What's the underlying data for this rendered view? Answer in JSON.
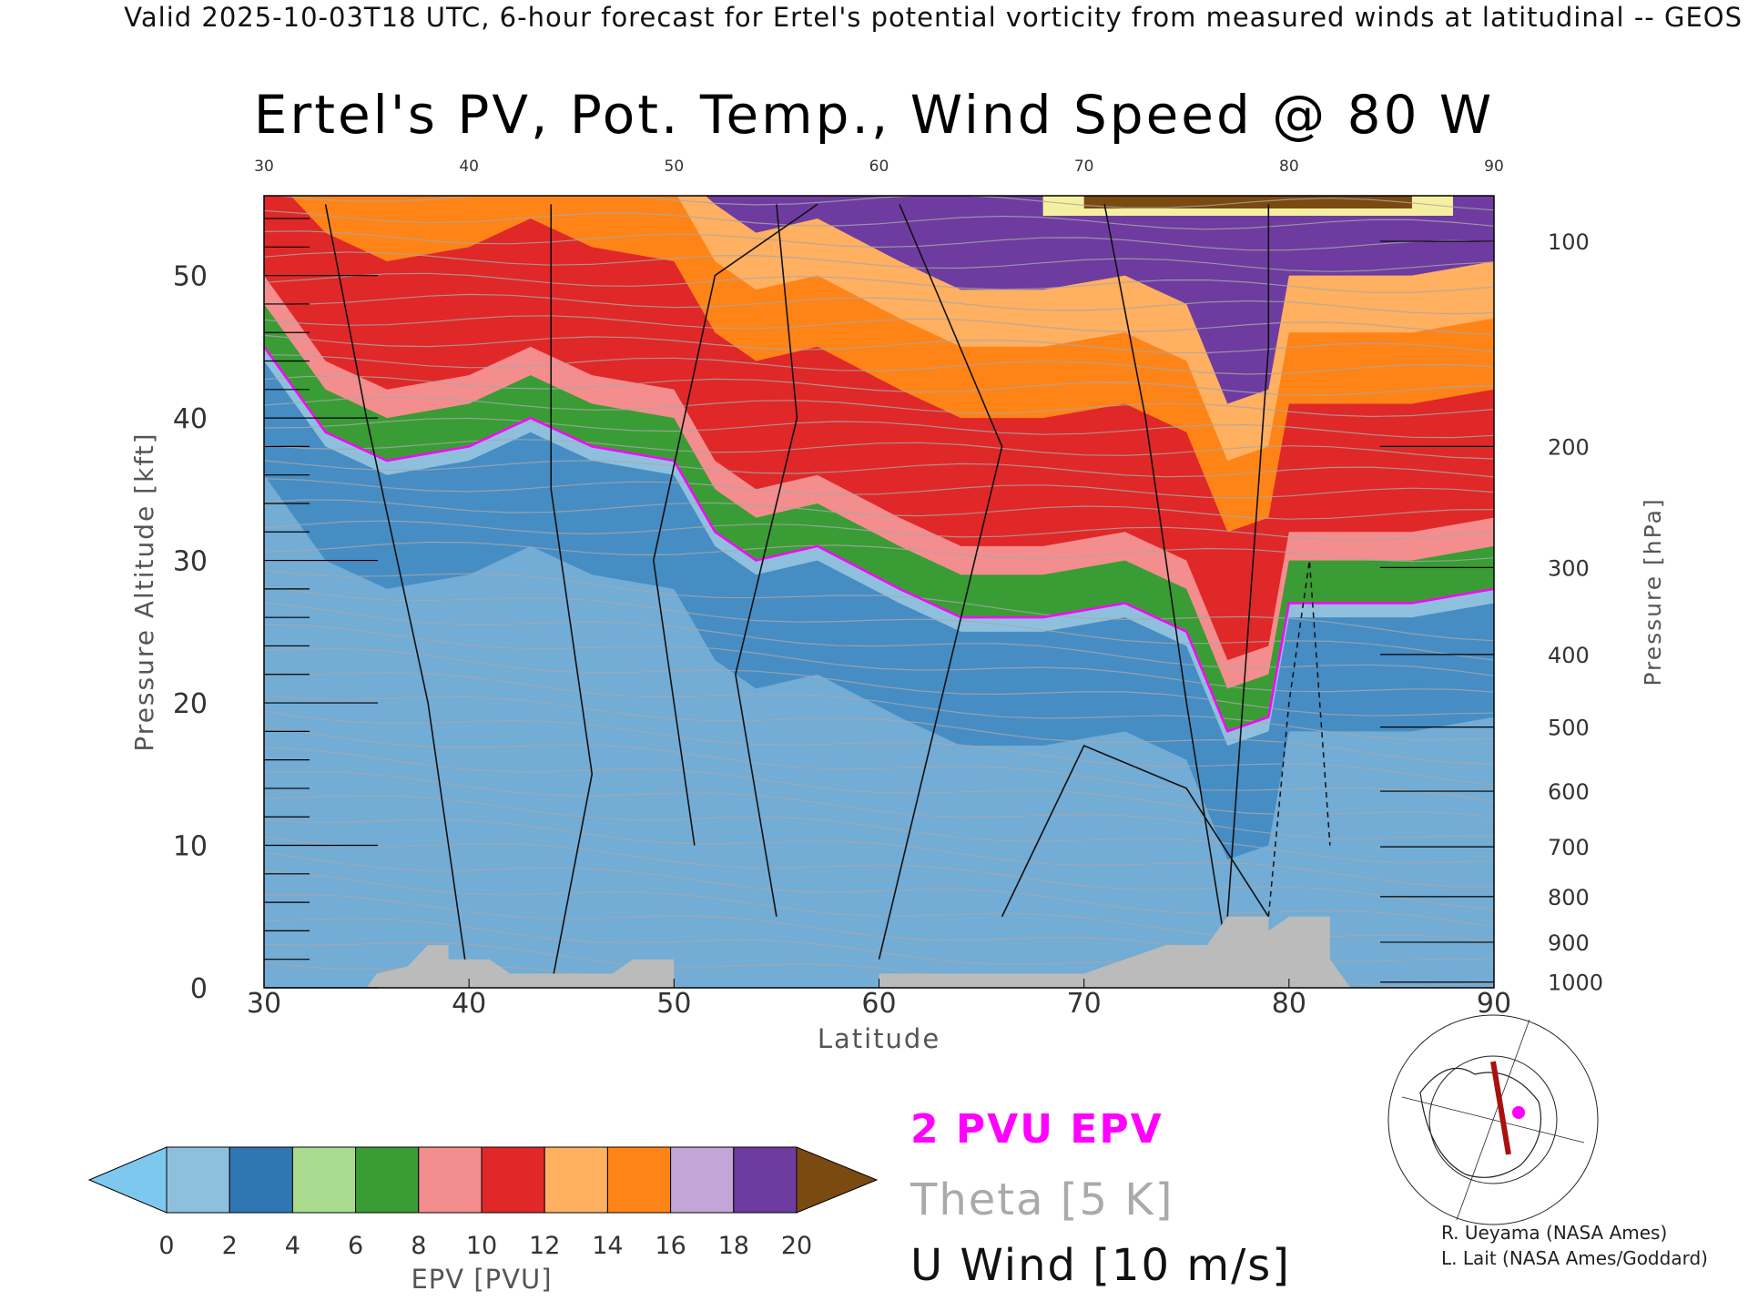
{
  "header": "Valid 2025-10-03T18 UTC, 6-hour forecast for Ertel's potential vorticity from measured winds at latitudinal -- GEOS",
  "chart_data": {
    "type": "heatmap",
    "title": "Ertel's PV, Pot. Temp., Wind Speed @ 80 W",
    "xlabel": "Latitude",
    "ylabel": "Pressure Altitude [kft]",
    "ylabel_right": "Pressure [hPa]",
    "xlim": [
      30,
      90
    ],
    "ylim": [
      0,
      55.6
    ],
    "x_ticks": [
      "30",
      "40",
      "50",
      "60",
      "70",
      "80",
      "90"
    ],
    "x_ticks_top": [
      "30",
      "40",
      "50",
      "60",
      "70",
      "80",
      "90"
    ],
    "y_ticks": [
      "0",
      "10",
      "20",
      "30",
      "40",
      "50"
    ],
    "pressure_ticks": [
      {
        "label": "100",
        "kft": 52.4
      },
      {
        "label": "200",
        "kft": 38.0
      },
      {
        "label": "300",
        "kft": 29.5
      },
      {
        "label": "400",
        "kft": 23.4
      },
      {
        "label": "500",
        "kft": 18.3
      },
      {
        "label": "600",
        "kft": 13.8
      },
      {
        "label": "700",
        "kft": 9.9
      },
      {
        "label": "800",
        "kft": 6.4
      },
      {
        "label": "900",
        "kft": 3.2
      },
      {
        "label": "1000",
        "kft": 0.4
      }
    ],
    "tropopause_2pvu_kft": [
      {
        "lat": 30,
        "kft": 45
      },
      {
        "lat": 33,
        "kft": 39
      },
      {
        "lat": 36,
        "kft": 37
      },
      {
        "lat": 40,
        "kft": 38
      },
      {
        "lat": 43,
        "kft": 40
      },
      {
        "lat": 46,
        "kft": 38
      },
      {
        "lat": 50,
        "kft": 37
      },
      {
        "lat": 52,
        "kft": 32
      },
      {
        "lat": 54,
        "kft": 30
      },
      {
        "lat": 57,
        "kft": 31
      },
      {
        "lat": 61,
        "kft": 28
      },
      {
        "lat": 64,
        "kft": 26
      },
      {
        "lat": 68,
        "kft": 26
      },
      {
        "lat": 72,
        "kft": 27
      },
      {
        "lat": 75,
        "kft": 25
      },
      {
        "lat": 77,
        "kft": 18
      },
      {
        "lat": 79,
        "kft": 19
      },
      {
        "lat": 80,
        "kft": 27
      },
      {
        "lat": 83,
        "kft": 27
      },
      {
        "lat": 86,
        "kft": 27
      },
      {
        "lat": 90,
        "kft": 28
      }
    ],
    "colorbar": {
      "label": "EPV [PVU]",
      "ticks": [
        "0",
        "2",
        "4",
        "6",
        "8",
        "10",
        "12",
        "14",
        "16",
        "18",
        "20"
      ],
      "under_color": "#7ec8f0",
      "over_color": "#7a4a10",
      "colors": [
        "#8ec0de",
        "#2f76b3",
        "#a8db8e",
        "#3a9c35",
        "#f48d8d",
        "#e02828",
        "#ffb060",
        "#ff8418",
        "#c3a6d6",
        "#6e3ca0",
        "#f4f0a0"
      ]
    },
    "legend": [
      {
        "label": "2 PVU EPV",
        "color": "#ff00ff"
      },
      {
        "label": "Theta [5 K]",
        "color": "#aaaaaa"
      },
      {
        "label": "U Wind [10 m/s]",
        "color": "#111111"
      }
    ]
  },
  "credits": [
    "R. Ueyama (NASA Ames)",
    "L. Lait (NASA Ames/Goddard)"
  ]
}
